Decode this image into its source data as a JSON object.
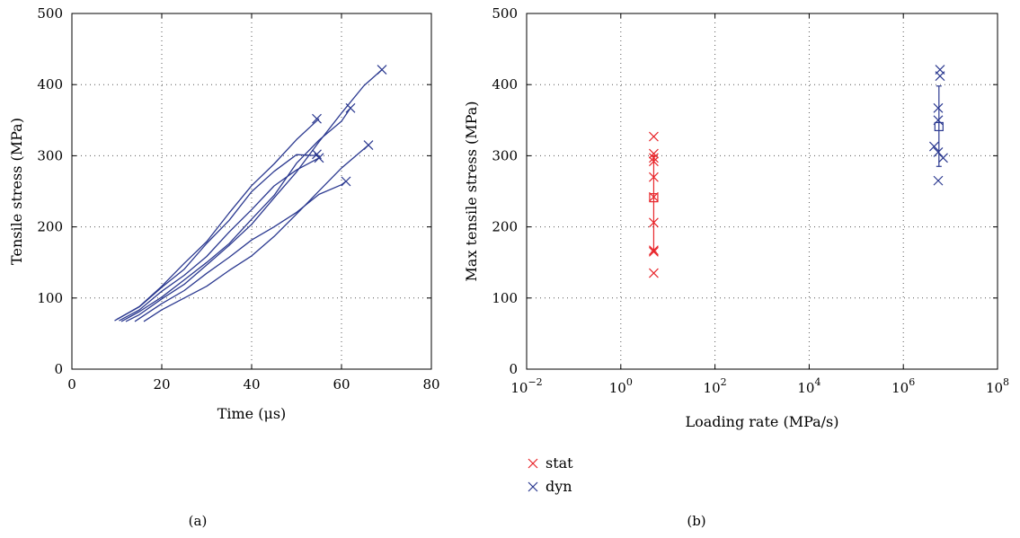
{
  "chart_data": [
    {
      "type": "line",
      "panel_label": "(a)",
      "xlabel": "Time (μs)",
      "ylabel": "Tensile stress (MPa)",
      "xlim": [
        0,
        80
      ],
      "ylim": [
        0,
        500
      ],
      "xticks": [
        "0",
        "20",
        "40",
        "60",
        "80"
      ],
      "yticks": [
        "0",
        "100",
        "200",
        "300",
        "400",
        "500"
      ],
      "grid": true,
      "line_color": "#2b3990",
      "series": [
        {
          "x": [
            9.5,
            15,
            20,
            25,
            30,
            35,
            40,
            45,
            50,
            55
          ],
          "y": [
            68,
            88,
            118,
            148,
            180,
            218,
            258,
            290,
            322,
            352
          ],
          "end": [
            54.5,
            352
          ]
        },
        {
          "x": [
            10,
            15,
            20,
            25,
            30,
            35,
            40,
            45,
            50,
            55
          ],
          "y": [
            70,
            86,
            115,
            142,
            176,
            210,
            248,
            278,
            303,
            300
          ],
          "end": [
            54.5,
            302
          ]
        },
        {
          "x": [
            10.5,
            15,
            20,
            25,
            30,
            35,
            40,
            45,
            50,
            55
          ],
          "y": [
            68,
            84,
            108,
            132,
            160,
            192,
            225,
            256,
            280,
            297
          ],
          "end": [
            55,
            297
          ]
        },
        {
          "x": [
            11,
            15,
            20,
            25,
            30,
            35,
            40,
            45,
            50,
            55,
            60,
            62
          ],
          "y": [
            67,
            80,
            102,
            124,
            150,
            178,
            210,
            245,
            288,
            322,
            350,
            367
          ],
          "end": [
            62,
            367
          ]
        },
        {
          "x": [
            12,
            15,
            20,
            25,
            30,
            35,
            40,
            45,
            50,
            55,
            60,
            65,
            69
          ],
          "y": [
            67,
            78,
            98,
            120,
            145,
            174,
            205,
            240,
            278,
            318,
            360,
            400,
            421
          ],
          "end": [
            69,
            421
          ]
        },
        {
          "x": [
            14,
            20,
            25,
            30,
            35,
            40,
            45,
            50,
            55,
            60,
            61
          ],
          "y": [
            67,
            92,
            112,
            134,
            158,
            180,
            200,
            222,
            245,
            260,
            264
          ],
          "end": [
            61,
            264
          ]
        },
        {
          "x": [
            16,
            20,
            25,
            30,
            35,
            40,
            45,
            50,
            55,
            60,
            66
          ],
          "y": [
            67,
            82,
            100,
            118,
            138,
            160,
            185,
            218,
            252,
            282,
            315
          ],
          "end": [
            66,
            315
          ]
        }
      ]
    },
    {
      "type": "scatter",
      "panel_label": "(b)",
      "xlabel": "Loading rate (MPa/s)",
      "ylabel": "Max tensile stress (MPa)",
      "xscale": "log",
      "xlim": [
        0.01,
        100000000
      ],
      "ylim": [
        0,
        500
      ],
      "xtick_values": [
        0.01,
        1,
        100,
        10000,
        1000000,
        100000000
      ],
      "xtick_exponents": [
        "−2",
        "0",
        "2",
        "4",
        "6",
        "8"
      ],
      "xtick_base": "10",
      "yticks": [
        "0",
        "100",
        "200",
        "300",
        "400",
        "500"
      ],
      "grid": true,
      "legend": {
        "position": "below-left"
      },
      "series": [
        {
          "name": "stat",
          "color": "#e8252a",
          "points": [
            [
              5,
              327
            ],
            [
              5,
              303
            ],
            [
              5,
              297
            ],
            [
              5,
              292
            ],
            [
              5,
              270
            ],
            [
              5,
              242
            ],
            [
              5,
              206
            ],
            [
              5,
              167
            ],
            [
              5,
              165
            ],
            [
              5,
              135
            ]
          ],
          "mean": [
            5,
            241
          ],
          "error": [
            165,
            300
          ]
        },
        {
          "name": "dyn",
          "color": "#2b3990",
          "points": [
            [
              6000000,
              421
            ],
            [
              6000000,
              412
            ],
            [
              5500000,
              367
            ],
            [
              5500000,
              350
            ],
            [
              4500000,
              313
            ],
            [
              5500000,
              305
            ],
            [
              7000000,
              297
            ],
            [
              5500000,
              265
            ]
          ],
          "mean": [
            5700000,
            341
          ],
          "error": [
            285,
            398
          ]
        }
      ]
    }
  ]
}
